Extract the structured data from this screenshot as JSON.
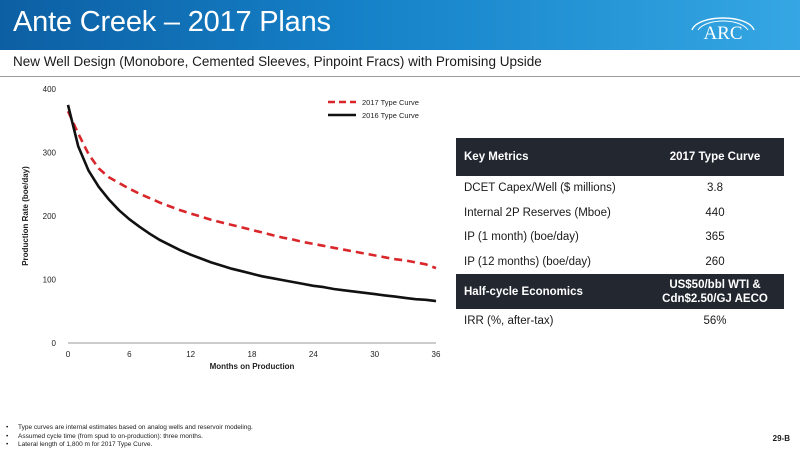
{
  "header": {
    "title": "Ante Creek – 2017 Plans",
    "logo_text": "ARC"
  },
  "subtitle": "New Well Design (Monobore, Cemented Sleeves, Pinpoint Fracs) with Promising Upside",
  "chart_data": {
    "type": "line",
    "title": "",
    "xlabel": "Months on Production",
    "ylabel": "Production Rate (boe/day)",
    "xlim": [
      0,
      36
    ],
    "ylim": [
      0,
      400
    ],
    "xticks": [
      "0",
      "6",
      "12",
      "18",
      "24",
      "30",
      "36"
    ],
    "yticks": [
      "0",
      "100",
      "200",
      "300",
      "400"
    ],
    "legend_position": "top-right",
    "series": [
      {
        "name": "2017 Type Curve",
        "color": "#d9262b",
        "style": "dashed",
        "x": [
          0,
          1,
          2,
          3,
          4,
          5,
          6,
          7,
          8,
          9,
          10,
          11,
          12,
          13,
          14,
          15,
          16,
          17,
          18,
          19,
          20,
          21,
          22,
          23,
          24,
          25,
          26,
          27,
          28,
          29,
          30,
          31,
          32,
          33,
          34,
          35,
          36
        ],
        "values": [
          365,
          330,
          298,
          275,
          261,
          252,
          243,
          235,
          228,
          221,
          215,
          209,
          204,
          199,
          194,
          190,
          186,
          182,
          178,
          174,
          170,
          166,
          163,
          159,
          156,
          153,
          150,
          147,
          144,
          141,
          138,
          135,
          132,
          130,
          127,
          124,
          118
        ]
      },
      {
        "name": "2016 Type Curve",
        "color": "#111111",
        "style": "solid",
        "x": [
          0,
          1,
          2,
          3,
          4,
          5,
          6,
          7,
          8,
          9,
          10,
          11,
          12,
          13,
          14,
          15,
          16,
          17,
          18,
          19,
          20,
          21,
          22,
          23,
          24,
          25,
          26,
          27,
          28,
          29,
          30,
          31,
          32,
          33,
          34,
          35,
          36
        ],
        "values": [
          375,
          310,
          272,
          246,
          226,
          209,
          195,
          183,
          172,
          162,
          154,
          146,
          139,
          133,
          127,
          122,
          117,
          113,
          109,
          105,
          102,
          99,
          96,
          93,
          90,
          88,
          85,
          83,
          81,
          79,
          77,
          75,
          73,
          71,
          69,
          68,
          66
        ]
      }
    ]
  },
  "metrics": {
    "header_label": "Key Metrics",
    "header_value": "2017 Type Curve",
    "rows": [
      {
        "label": "DCET Capex/Well ($ millions)",
        "value": "3.8"
      },
      {
        "label": "Internal 2P Reserves (Mboe)",
        "value": "440"
      },
      {
        "label": "IP (1 month) (boe/day)",
        "value": "365"
      },
      {
        "label": "IP (12 months) (boe/day)",
        "value": "260"
      }
    ],
    "econ_label": "Half-cycle Economics",
    "econ_value_line1": "US$50/bbl WTI &",
    "econ_value_line2": "Cdn$2.50/GJ AECO",
    "irr_label": "IRR (%, after-tax)",
    "irr_value": "56%"
  },
  "notes": [
    "Type curves are internal estimates based on analog wells and reservoir modeling.",
    "Assumed cycle time (from spud to on-production): three months.",
    "Lateral length of 1,800 m for 2017 Type Curve."
  ],
  "page_number": "29-B"
}
